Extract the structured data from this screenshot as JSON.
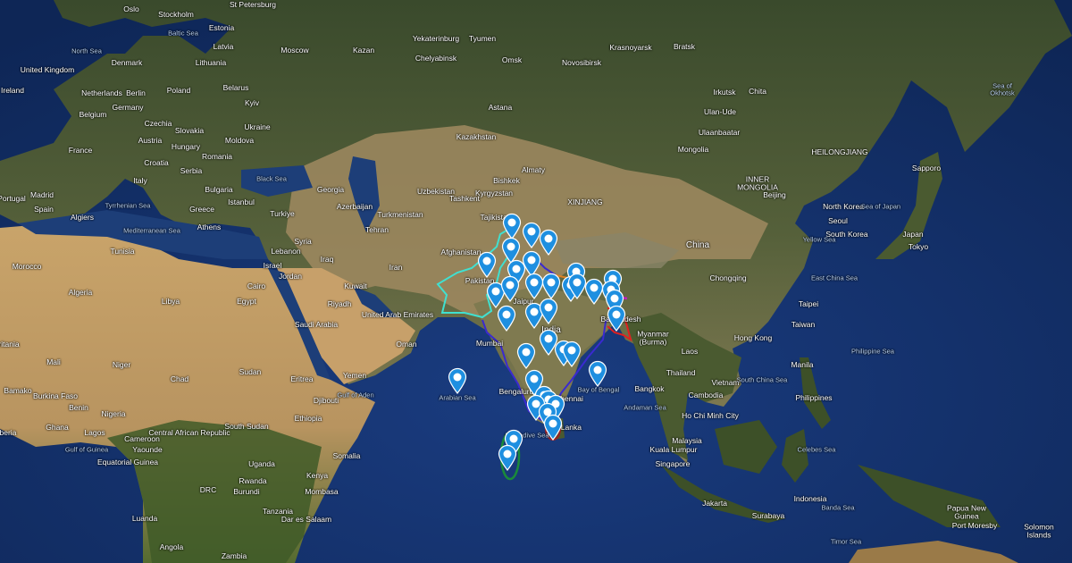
{
  "map": {
    "type": "satellite",
    "marker_color": "#1e8fe0",
    "border_colors": {
      "pakistan": "#40e0d0",
      "india": "#3a2ad0",
      "bangladesh": "#e02020",
      "maldives": "#1a8a3a",
      "nepal": "#e08020",
      "bhutan": "#c020c0"
    },
    "marker_icon": "map-pin-icon",
    "marker_count": 37,
    "labels": {
      "oslo": "Oslo",
      "stockholm": "Stockholm",
      "st_petersburg": "St Petersburg",
      "estonia": "Estonia",
      "latvia": "Latvia",
      "lithuania": "Lithuania",
      "north_sea": "North Sea",
      "baltic_sea": "Baltic Sea",
      "uk": "United Kingdom",
      "ireland": "Ireland",
      "denmark": "Denmark",
      "netherlands": "Netherlands",
      "berlin": "Berlin",
      "poland": "Poland",
      "belarus": "Belarus",
      "belgium": "Belgium",
      "germany": "Germany",
      "czechia": "Czechia",
      "ukraine": "Ukraine",
      "kyiv": "Kyiv",
      "france": "France",
      "austria": "Austria",
      "hungary": "Hungary",
      "slovakia": "Slovakia",
      "moldova": "Moldova",
      "romania": "Romania",
      "croatia": "Croatia",
      "serbia": "Serbia",
      "bulgaria": "Bulgaria",
      "italy": "Italy",
      "spain": "Spain",
      "portugal": "Portugal",
      "madrid": "Madrid",
      "greece": "Greece",
      "athens": "Athens",
      "turkiye": "Turkiye",
      "istanbul": "Istanbul",
      "black_sea": "Black Sea",
      "med_sea": "Mediterranean Sea",
      "tyrrhenian": "Tyrrhenian Sea",
      "algiers": "Algiers",
      "tunisia": "Tunisia",
      "algeria": "Algeria",
      "morocco": "Morocco",
      "libya": "Libya",
      "egypt": "Egypt",
      "cairo": "Cairo",
      "mali": "Mali",
      "niger": "Niger",
      "chad": "Chad",
      "sudan": "Sudan",
      "mauritania": "ritania",
      "bamako": "Bamako",
      "burkina": "Burkina Faso",
      "benin": "Benin",
      "nigeria": "Nigeria",
      "ghana": "Ghana",
      "liberia": "iberia",
      "lagos": "Lagos",
      "gulf_guinea": "Gulf of Guinea",
      "cameroon": "Cameroon",
      "car": "Central African Republic",
      "yaounde": "Yaounde",
      "eq_guinea": "Equatorial Guinea",
      "south_sudan": "South Sudan",
      "ethiopia": "Ethiopia",
      "somalia": "Somalia",
      "kenya": "Kenya",
      "uganda": "Uganda",
      "rwanda": "Rwanda",
      "burundi": "Burundi",
      "drc": "DRC",
      "tanzania": "Tanzania",
      "dar": "Dar es Salaam",
      "mombasa": "Mombasa",
      "luanda": "Luanda",
      "angola": "Angola",
      "zambia": "Zambia",
      "moscow": "Moscow",
      "kazan": "Kazan",
      "yekaterinburg": "Yekaterinburg",
      "tyumen": "Tyumen",
      "chelyabinsk": "Chelyabinsk",
      "omsk": "Omsk",
      "novosibirsk": "Novosibirsk",
      "krasnoyarsk": "Krasnoyarsk",
      "bratsk": "Bratsk",
      "irkutsk": "Irkutsk",
      "chita": "Chita",
      "ulan_ude": "Ulan-Ude",
      "kazakhstan": "Kazakhstan",
      "astana": "Astana",
      "almaty": "Almaty",
      "mongolia": "Mongolia",
      "ulaanbaatar": "Ulaanbaatar",
      "georgia": "Georgia",
      "azerbaijan": "Azerbaijan",
      "uzbekistan": "Uzbekistan",
      "bishkek": "Bishkek",
      "kyrgyzstan": "Kyrgyzstan",
      "tashkent": "Tashkent",
      "turkmenistan": "Turkmenistan",
      "tehran": "Tehran",
      "tajikistan": "Tajikistan",
      "afghanistan": "Afghanistan",
      "pakistan": "Pakistan",
      "iran": "Iran",
      "iraq": "Iraq",
      "syria": "Syria",
      "lebanon": "Lebanon",
      "israel": "Israel",
      "jordan": "Jordan",
      "saudi": "Saudi Arabia",
      "riyadh": "Riyadh",
      "kuwait": "Kuwait",
      "uae": "United Arab Emirates",
      "oman": "Oman",
      "yemen": "Yemen",
      "djibouti": "Djibouti",
      "eritrea": "Eritrea",
      "gulf_aden": "Gulf of Aden",
      "india": "India",
      "mumbai": "Mumbai",
      "bengaluru": "Bengaluru",
      "chennai": "Chennai",
      "jaipur": "Jaipur",
      "sri_lanka": "Sri Lanka",
      "laccadive": "Laccadive Sea",
      "arabian_sea": "Arabian Sea",
      "bay_bengal": "Bay of Bengal",
      "bangladesh": "Bangladesh",
      "andaman": "Andaman Sea",
      "china": "China",
      "xinjiang": "XINJIANG",
      "beijing": "Beijing",
      "chongqing": "Chongqing",
      "north_korea": "North Korea",
      "south_korea": "South Korea",
      "seoul": "Seoul",
      "japan": "Japan",
      "tokyo": "Tokyo",
      "sapporo": "Sapporo",
      "sea_japan": "Sea of Japan",
      "yellow_sea": "Yellow Sea",
      "east_china_sea": "East China Sea",
      "taipei": "Taipei",
      "taiwan": "Taiwan",
      "hong_kong": "Hong Kong",
      "laos": "Laos",
      "myanmar": "Myanmar\n(Burma)",
      "thailand": "Thailand",
      "bangkok": "Bangkok",
      "vietnam": "Vietnam",
      "ho_chi_minh": "Ho Chi Minh City",
      "cambodia": "Cambodia",
      "philippines": "Philippines",
      "manila": "Manila",
      "philippine_sea": "Philippine Sea",
      "south_china_sea": "South China Sea",
      "malaysia": "Malaysia",
      "kuala_lumpur": "Kuala Lumpur",
      "singapore": "Singapore",
      "indonesia": "Indonesia",
      "jakarta": "Jakarta",
      "surabaya": "Surabaya",
      "celebes": "Celebes Sea",
      "banda": "Banda Sea",
      "timor": "Timor Sea",
      "png": "Papua New\nGuinea",
      "port_moresby": "Port Moresby",
      "solomon": "Solomon\nIslands",
      "okhotsk": "Sea of\nOkhotsk",
      "heilongjiang": "HEILONGJIANG",
      "inner_mongolia": "INNER\nMONGOLIA"
    }
  }
}
